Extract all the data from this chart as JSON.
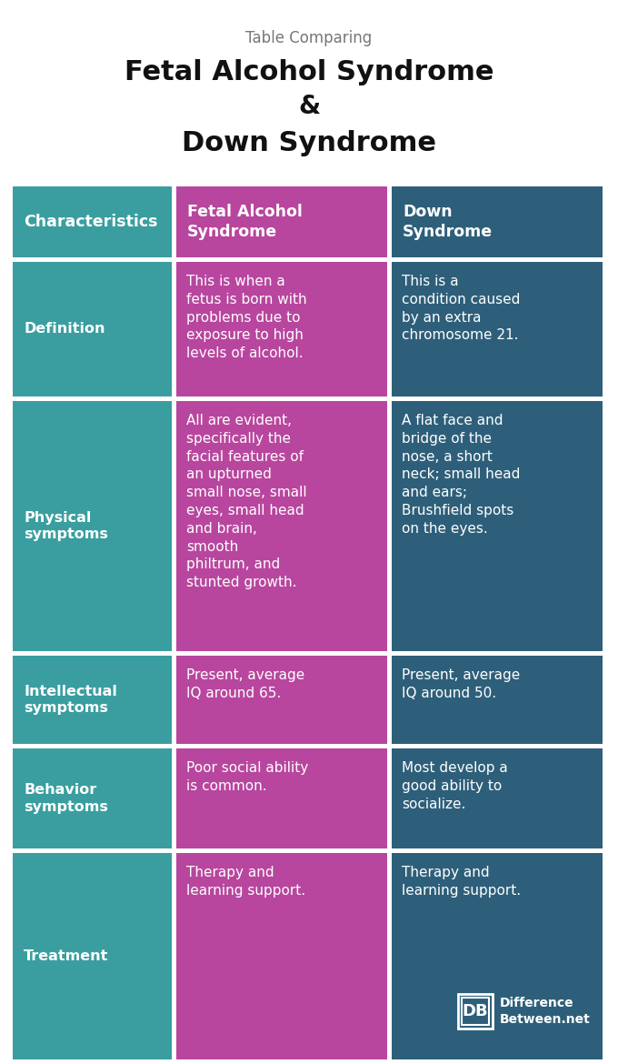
{
  "title_small": "Table Comparing",
  "title_line1": "Fetal Alcohol Syndrome",
  "title_line2": "&",
  "title_line3": "Down Syndrome",
  "bg_color": "#ffffff",
  "col1_bg": "#3a9ea0",
  "col2_bg": "#b8469e",
  "col3_bg": "#2e5f7a",
  "header_text_color": "#ffffff",
  "cell_text_color": "#ffffff",
  "header_row": [
    "Characteristics",
    "Fetal Alcohol\nSyndrome",
    "Down\nSyndrome"
  ],
  "rows": [
    {
      "label": "Definition",
      "col2": "This is when a\nfetus is born with\nproblems due to\nexposure to high\nlevels of alcohol.",
      "col3": "This is a\ncondition caused\nby an extra\nchromosome 21."
    },
    {
      "label": "Physical\nsymptoms",
      "col2": "All are evident,\nspecifically the\nfacial features of\nan upturned\nsmall nose, small\neyes, small head\nand brain,\nsmooth\nphiltrum, and\nstunted growth.",
      "col3": "A flat face and\nbridge of the\nnose, a short\nneck; small head\nand ears;\nBrushfield spots\non the eyes."
    },
    {
      "label": "Intellectual\nsymptoms",
      "col2": "Present, average\nIQ around 65.",
      "col3": "Present, average\nIQ around 50."
    },
    {
      "label": "Behavior\nsymptoms",
      "col2": "Poor social ability\nis common.",
      "col3": "Most develop a\ngood ability to\nsocialize."
    },
    {
      "label": "Treatment",
      "col2": "Therapy and\nlearning support.",
      "col3": "Therapy and\nlearning support."
    }
  ],
  "logo_text1": "DB",
  "logo_text2": "Difference\nBetween.net",
  "title_small_fontsize": 12,
  "title_bold_fontsize": 22,
  "header_fontsize": 12.5,
  "cell_fontsize": 11,
  "label_fontsize": 11.5
}
